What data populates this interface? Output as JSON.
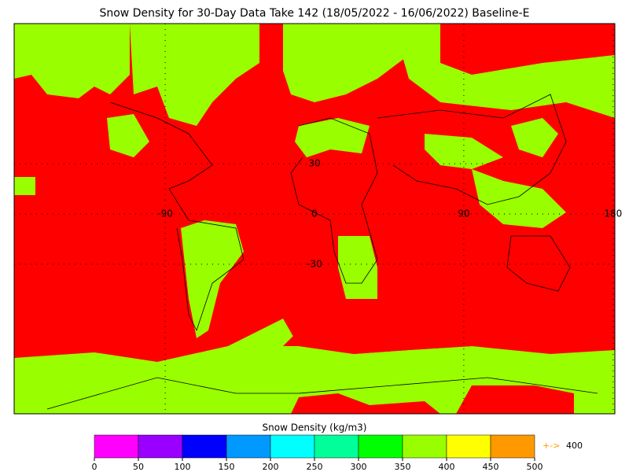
{
  "title": "Snow Density for 30-Day Data Take 142 (18/05/2022 - 16/06/2022) Baseline-E",
  "map": {
    "background_color": "#ff0000",
    "land_color": "#99ff00",
    "lat_labels": [
      30,
      0,
      -30
    ],
    "lon_labels": [
      -90,
      90,
      180
    ]
  },
  "colorbar": {
    "label": "Snow Density (kg/m3)",
    "ticks": [
      0,
      50,
      100,
      150,
      200,
      250,
      300,
      350,
      400,
      450,
      500
    ],
    "colors": [
      "#ff00ff",
      "#9900ff",
      "#0000ff",
      "#0099ff",
      "#00ffff",
      "#00ff99",
      "#00ff00",
      "#99ff00",
      "#ffff00",
      "#ff9900"
    ],
    "overflow_arrow": "+->",
    "overflow_value": 400
  }
}
